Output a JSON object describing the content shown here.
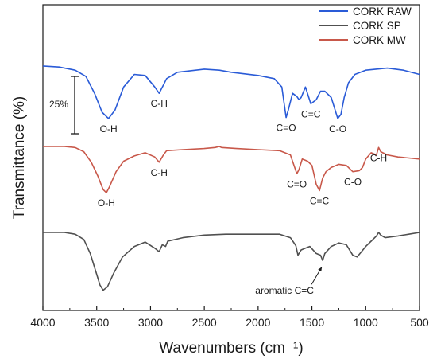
{
  "chart_data": {
    "type": "line",
    "title": "",
    "xlabel": "Wavenumbers (cm⁻¹)",
    "ylabel": "Transmittance (%)",
    "xlim": [
      4000,
      500
    ],
    "x_reversed": true,
    "x_ticks": [
      4000,
      3500,
      3000,
      2500,
      2000,
      1500,
      1000,
      500
    ],
    "y_ticks_shown": false,
    "grid": false,
    "legend_position": "top-right",
    "scale_bar_label": "25%",
    "series": [
      {
        "name": "CORK RAW",
        "color": "#2a5bd7",
        "points": [
          [
            4000,
            6
          ],
          [
            3850,
            7
          ],
          [
            3700,
            10
          ],
          [
            3600,
            16
          ],
          [
            3520,
            32
          ],
          [
            3450,
            50
          ],
          [
            3390,
            56
          ],
          [
            3330,
            48
          ],
          [
            3250,
            26
          ],
          [
            3150,
            14
          ],
          [
            3050,
            15
          ],
          [
            2960,
            26
          ],
          [
            2920,
            32
          ],
          [
            2880,
            24
          ],
          [
            2850,
            18
          ],
          [
            2750,
            12
          ],
          [
            2500,
            9
          ],
          [
            2360,
            10
          ],
          [
            2250,
            12
          ],
          [
            2000,
            15
          ],
          [
            1850,
            18
          ],
          [
            1780,
            26
          ],
          [
            1740,
            55
          ],
          [
            1720,
            48
          ],
          [
            1680,
            32
          ],
          [
            1640,
            35
          ],
          [
            1620,
            38
          ],
          [
            1600,
            36
          ],
          [
            1560,
            26
          ],
          [
            1510,
            42
          ],
          [
            1460,
            38
          ],
          [
            1420,
            30
          ],
          [
            1380,
            30
          ],
          [
            1320,
            36
          ],
          [
            1260,
            56
          ],
          [
            1230,
            52
          ],
          [
            1200,
            36
          ],
          [
            1160,
            22
          ],
          [
            1100,
            14
          ],
          [
            1000,
            10
          ],
          [
            800,
            8
          ],
          [
            650,
            10
          ],
          [
            500,
            14
          ]
        ]
      },
      {
        "name": "CORK MW",
        "color": "#c8584a",
        "points": [
          [
            4000,
            0
          ],
          [
            3800,
            0
          ],
          [
            3700,
            1
          ],
          [
            3620,
            5
          ],
          [
            3550,
            15
          ],
          [
            3490,
            28
          ],
          [
            3440,
            41
          ],
          [
            3410,
            44
          ],
          [
            3380,
            38
          ],
          [
            3320,
            24
          ],
          [
            3250,
            14
          ],
          [
            3150,
            9
          ],
          [
            3050,
            6
          ],
          [
            2960,
            10
          ],
          [
            2920,
            15
          ],
          [
            2880,
            8
          ],
          [
            2850,
            4
          ],
          [
            2700,
            3
          ],
          [
            2500,
            2
          ],
          [
            2400,
            1
          ],
          [
            2360,
            0
          ],
          [
            2340,
            1
          ],
          [
            2200,
            2
          ],
          [
            2000,
            3
          ],
          [
            1800,
            4
          ],
          [
            1700,
            8
          ],
          [
            1640,
            26
          ],
          [
            1620,
            22
          ],
          [
            1590,
            12
          ],
          [
            1540,
            14
          ],
          [
            1500,
            18
          ],
          [
            1460,
            36
          ],
          [
            1430,
            42
          ],
          [
            1400,
            30
          ],
          [
            1370,
            24
          ],
          [
            1320,
            20
          ],
          [
            1250,
            17
          ],
          [
            1180,
            18
          ],
          [
            1120,
            24
          ],
          [
            1060,
            23
          ],
          [
            1030,
            20
          ],
          [
            1000,
            12
          ],
          [
            950,
            6
          ],
          [
            900,
            8
          ],
          [
            880,
            1
          ],
          [
            860,
            5
          ],
          [
            800,
            8
          ],
          [
            700,
            10
          ],
          [
            600,
            11
          ],
          [
            500,
            12
          ]
        ]
      },
      {
        "name": "CORK SP",
        "color": "#505050",
        "points": [
          [
            4000,
            0
          ],
          [
            3800,
            0
          ],
          [
            3700,
            2
          ],
          [
            3620,
            8
          ],
          [
            3560,
            24
          ],
          [
            3510,
            44
          ],
          [
            3470,
            60
          ],
          [
            3440,
            66
          ],
          [
            3400,
            62
          ],
          [
            3340,
            46
          ],
          [
            3260,
            28
          ],
          [
            3150,
            16
          ],
          [
            3050,
            11
          ],
          [
            2960,
            18
          ],
          [
            2920,
            22
          ],
          [
            2890,
            14
          ],
          [
            2860,
            16
          ],
          [
            2840,
            10
          ],
          [
            2700,
            6
          ],
          [
            2500,
            3
          ],
          [
            2300,
            2
          ],
          [
            2000,
            2
          ],
          [
            1800,
            2
          ],
          [
            1700,
            6
          ],
          [
            1650,
            15
          ],
          [
            1630,
            26
          ],
          [
            1600,
            20
          ],
          [
            1560,
            18
          ],
          [
            1520,
            16
          ],
          [
            1460,
            24
          ],
          [
            1420,
            26
          ],
          [
            1400,
            32
          ],
          [
            1380,
            24
          ],
          [
            1320,
            16
          ],
          [
            1250,
            12
          ],
          [
            1180,
            14
          ],
          [
            1120,
            26
          ],
          [
            1080,
            28
          ],
          [
            1040,
            22
          ],
          [
            1000,
            16
          ],
          [
            950,
            10
          ],
          [
            900,
            4
          ],
          [
            880,
            0
          ],
          [
            860,
            3
          ],
          [
            820,
            6
          ],
          [
            700,
            4
          ],
          [
            600,
            2
          ],
          [
            500,
            0
          ]
        ]
      }
    ],
    "annotations": [
      {
        "text": "O-H",
        "x": 3390,
        "series": "CORK RAW"
      },
      {
        "text": "C-H",
        "x": 2920,
        "series": "CORK RAW"
      },
      {
        "text": "C=O",
        "x": 1740,
        "series": "CORK RAW"
      },
      {
        "text": "C=C",
        "x": 1510,
        "series": "CORK RAW"
      },
      {
        "text": "C-O",
        "x": 1260,
        "series": "CORK RAW"
      },
      {
        "text": "C-H",
        "x": 2920,
        "series": "CORK MW"
      },
      {
        "text": "O-H",
        "x": 3410,
        "series": "CORK MW"
      },
      {
        "text": "C=O",
        "x": 1640,
        "series": "CORK MW"
      },
      {
        "text": "C=C",
        "x": 1430,
        "series": "CORK MW"
      },
      {
        "text": "C-O",
        "x": 1120,
        "series": "CORK MW"
      },
      {
        "text": "C-H",
        "x": 880,
        "series": "CORK MW"
      },
      {
        "text": "aromatic C=C",
        "x": 1400,
        "series": "CORK SP",
        "arrow": true
      }
    ]
  }
}
